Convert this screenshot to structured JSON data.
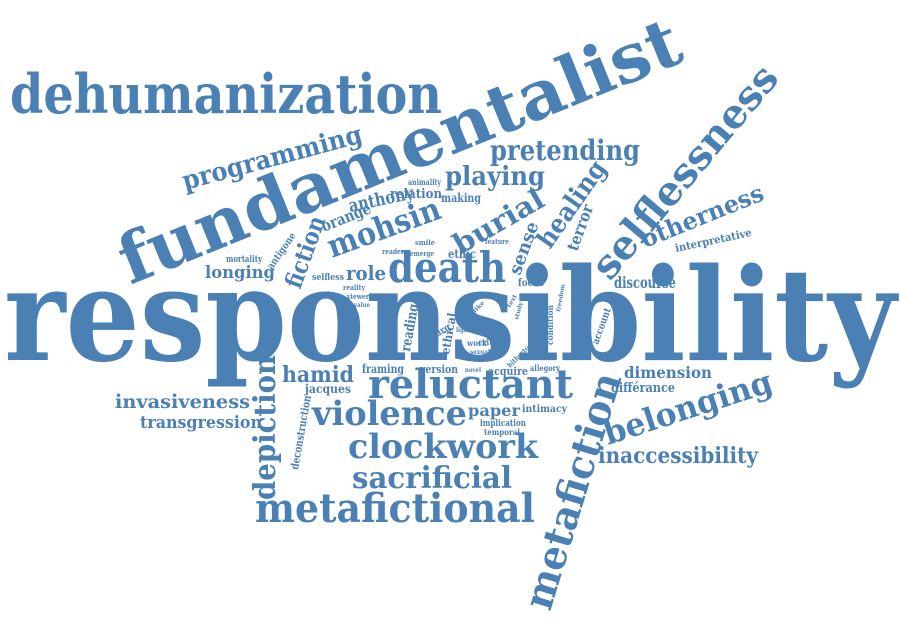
{
  "colors": {
    "word": "#4a80b3",
    "background": "#ffffff"
  },
  "words": {
    "responsibility": "responsibility",
    "fundamentalist": "fundamentalist",
    "dehumanization": "dehumanization",
    "selflessness": "selflessness",
    "metafiction": "metafiction",
    "metafictional": "metafictional",
    "reluctant": "reluctant",
    "death": "death",
    "mohsin": "mohsin",
    "violence": "violence",
    "clockwork": "clockwork",
    "sacrificial": "sacrificial",
    "belonging": "belonging",
    "depiction": "depiction",
    "programming": "programming",
    "pretending": "pretending",
    "playing": "playing",
    "burial": "burial",
    "healing": "healing",
    "otherness": "otherness",
    "inaccessibility": "inaccessibility",
    "hamid": "hamid",
    "invasiveness": "invasiveness",
    "transgression": "transgression",
    "fiction": "fiction",
    "anthony": "anthony",
    "orange": "orange",
    "role": "role",
    "longing": "longing",
    "discourse": "discourse",
    "dimension": "dimension",
    "differance": "différance",
    "terror": "terror",
    "sense": "sense",
    "relation": "relation",
    "making": "making",
    "animality": "animality",
    "interpretative": "interpretative",
    "ethic": "ethic",
    "focus": "focus",
    "paper": "paper",
    "intimacy": "intimacy",
    "implication": "implication",
    "temporal": "temporal",
    "framing": "framing",
    "version": "version",
    "acquire": "acquire",
    "allegory": "allegory",
    "jacques": "jacques",
    "deconstruction": "deconstruction",
    "antigone": "antigone",
    "mortality": "mortality",
    "selfless": "selfless",
    "reading": "reading",
    "ethical": "ethical",
    "free": "free",
    "critic": "critic",
    "work": "work",
    "account": "account",
    "condition": "condition",
    "smile": "smile",
    "emerge": "emerge",
    "reader": "reader",
    "feature": "feature",
    "reality": "reality",
    "viewer": "viewer",
    "value": "value",
    "respect": "respect",
    "burg": "burg",
    "like": "like",
    "text": "text",
    "study": "study",
    "freedom": "freedom",
    "light": "light",
    "novel": "novel",
    "sexual": "sexual",
    "hitherto": "hitherto",
    "sexual_small": "sexual"
  }
}
